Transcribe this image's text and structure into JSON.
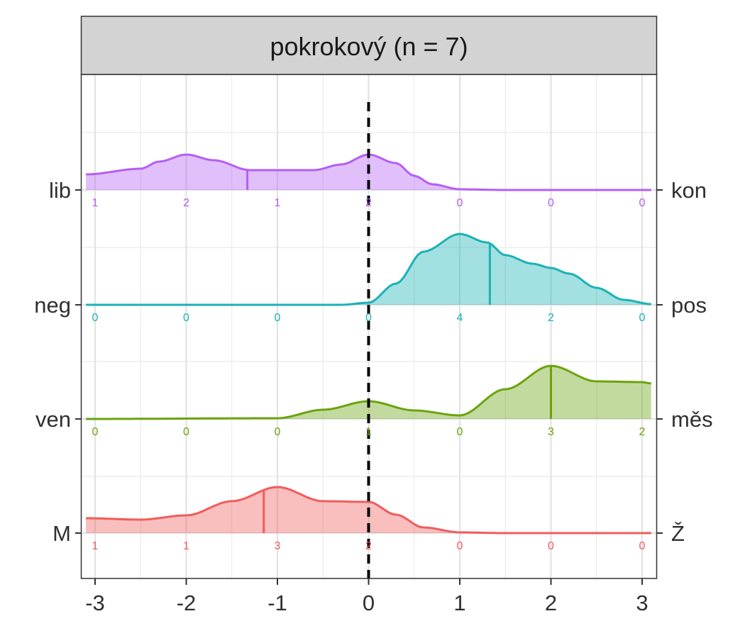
{
  "chart_data": {
    "type": "ridgeline",
    "title": "pokrokový (n = 7)",
    "xlabel": "",
    "ylabel": "",
    "xlim": [
      -3.1,
      3.1
    ],
    "x_ticks": [
      -3,
      -2,
      -1,
      0,
      1,
      2,
      3
    ],
    "x_tick_labels": [
      "-3",
      "-2",
      "-1",
      "0",
      "1",
      "2",
      "3"
    ],
    "reference_line_x": 0,
    "grid": true,
    "count_positions": [
      -3,
      -2,
      -1,
      0,
      1,
      2,
      3
    ],
    "series": [
      {
        "left_label": "lib",
        "right_label": "kon",
        "color": "#b45ef5",
        "counts": [
          "1",
          "2",
          "1",
          "2",
          "0",
          "0",
          "0"
        ],
        "median": -1.33,
        "density_x": [
          -3.1,
          -2.5,
          -2.3,
          -2.0,
          -1.7,
          -1.3,
          -1.0,
          -0.6,
          -0.3,
          0.0,
          0.3,
          0.5,
          0.7,
          1.0,
          1.5,
          2.0,
          3.1
        ],
        "density_y": [
          0.22,
          0.3,
          0.4,
          0.5,
          0.42,
          0.28,
          0.28,
          0.28,
          0.36,
          0.5,
          0.38,
          0.2,
          0.08,
          0.01,
          0.0,
          0.0,
          0.0
        ]
      },
      {
        "left_label": "neg",
        "right_label": "pos",
        "color": "#1ab2b5",
        "counts": [
          "0",
          "0",
          "0",
          "0",
          "4",
          "2",
          "0"
        ],
        "median": 1.33,
        "density_x": [
          -3.1,
          -1.0,
          -0.3,
          0.0,
          0.3,
          0.6,
          1.0,
          1.3,
          1.5,
          1.8,
          2.0,
          2.2,
          2.5,
          2.8,
          3.1
        ],
        "density_y": [
          0.0,
          0.0,
          0.0,
          0.03,
          0.3,
          0.75,
          1.0,
          0.88,
          0.7,
          0.58,
          0.52,
          0.44,
          0.24,
          0.07,
          0.01
        ]
      },
      {
        "left_label": "ven",
        "right_label": "měs",
        "color": "#6aa30d",
        "counts": [
          "0",
          "0",
          "0",
          "1",
          "0",
          "3",
          "2"
        ],
        "median": 2.0,
        "density_x": [
          -3.1,
          -1.0,
          -0.5,
          0.0,
          0.5,
          1.0,
          1.5,
          2.0,
          2.5,
          3.0,
          3.1
        ],
        "density_y": [
          0.0,
          0.01,
          0.13,
          0.25,
          0.12,
          0.05,
          0.42,
          0.75,
          0.53,
          0.52,
          0.5
        ]
      },
      {
        "left_label": "M",
        "right_label": "Ž",
        "color": "#f05c5c",
        "counts": [
          "1",
          "1",
          "3",
          "2",
          "0",
          "0",
          "0"
        ],
        "median": -1.15,
        "density_x": [
          -3.1,
          -2.5,
          -2.0,
          -1.5,
          -1.0,
          -0.5,
          0.0,
          0.3,
          0.6,
          1.0,
          1.5,
          3.1
        ],
        "density_y": [
          0.21,
          0.19,
          0.25,
          0.45,
          0.65,
          0.45,
          0.44,
          0.26,
          0.08,
          0.01,
          0.0,
          0.0
        ]
      }
    ]
  }
}
